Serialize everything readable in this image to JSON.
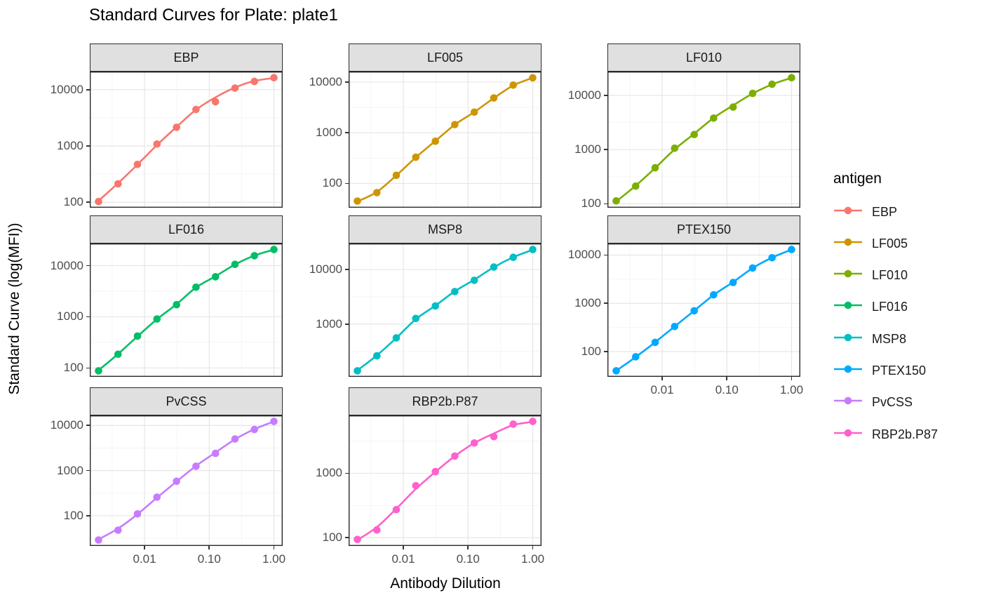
{
  "plot": {
    "title": "Standard Curves for Plate: plate1",
    "x_axis_title": "Antibody Dilution",
    "y_axis_title": "Standard Curve (log(MFI))",
    "legend_title": "antigen"
  },
  "style": {
    "background": "#FFFFFF",
    "strip_fill": "#E0E0E0",
    "strip_border": "#2A2A2A",
    "panel_border": "#2A2A2A",
    "grid_major": "#E6E6E6",
    "grid_minor": "#F3F3F3",
    "axis_text": "#4D4D4D",
    "tick_mark": "#333333"
  },
  "chart_data": {
    "type": "scatter",
    "subtype": "faceted standard curves: points + fitted smooth line, log10 x and y axes, free y scales",
    "title": "Standard Curves for Plate: plate1",
    "xlabel": "Antibody Dilution",
    "ylabel": "Standard Curve (log(MFI))",
    "legend_title": "antigen",
    "legend_position": "right",
    "grid": "on",
    "x_scale": "log10",
    "y_scale": "log10",
    "x": [
      0.00195,
      0.0039,
      0.0078,
      0.0156,
      0.0313,
      0.0625,
      0.125,
      0.25,
      0.5,
      1
    ],
    "x_ticks": [
      {
        "value": 0.01,
        "label": "0.01"
      },
      {
        "value": 0.1,
        "label": "0.10"
      },
      {
        "value": 1,
        "label": "1.00"
      }
    ],
    "y_tick_labels_seen": [
      "100",
      "1000",
      "10000"
    ],
    "facets": [
      {
        "name": "EBP",
        "color": "#F8766D",
        "mfi": [
          103,
          212,
          470,
          1080,
          2150,
          4450,
          6100,
          10700,
          14000,
          16300
        ],
        "fit": [
          106,
          218,
          468,
          1040,
          2180,
          4400,
          7300,
          10900,
          14300,
          16100
        ]
      },
      {
        "name": "LF005",
        "color": "#CD9600",
        "mfi": [
          45,
          66,
          145,
          330,
          680,
          1450,
          2550,
          4850,
          8700,
          12100
        ],
        "fit": [
          44,
          68,
          144,
          326,
          688,
          1440,
          2560,
          4830,
          8550,
          12150
        ]
      },
      {
        "name": "LF010",
        "color": "#7CAE00",
        "mfi": [
          113,
          212,
          462,
          1060,
          1900,
          3820,
          6100,
          10900,
          16100,
          21200
        ],
        "fit": [
          110,
          216,
          458,
          1010,
          1960,
          3860,
          6550,
          10800,
          16000,
          21100
        ]
      },
      {
        "name": "LF016",
        "color": "#00BE67",
        "mfi": [
          88,
          185,
          420,
          905,
          1720,
          3780,
          6050,
          10600,
          15600,
          20600
        ],
        "fit": [
          90,
          187,
          414,
          895,
          1760,
          3730,
          6200,
          10500,
          15700,
          20500
        ]
      },
      {
        "name": "MSP8",
        "color": "#00BFC4",
        "mfi": [
          140,
          263,
          560,
          1270,
          2150,
          3950,
          6350,
          11100,
          16700,
          23200
        ],
        "fit": [
          142,
          268,
          558,
          1230,
          2180,
          4000,
          6500,
          11000,
          16800,
          23000
        ]
      },
      {
        "name": "PTEX150",
        "color": "#00A9FF",
        "mfi": [
          40,
          78,
          155,
          330,
          700,
          1500,
          2700,
          5400,
          8800,
          13000
        ],
        "fit": [
          40,
          77,
          156,
          332,
          702,
          1490,
          2760,
          5360,
          8850,
          12950
        ]
      },
      {
        "name": "PvCSS",
        "color": "#C77CFF",
        "mfi": [
          29,
          48,
          110,
          258,
          580,
          1250,
          2400,
          5000,
          8100,
          12300
        ],
        "fit": [
          30,
          52,
          108,
          252,
          572,
          1265,
          2510,
          4920,
          8250,
          12250
        ]
      },
      {
        "name": "RBP2b.P87",
        "color": "#FF61CC",
        "mfi": [
          94,
          132,
          272,
          640,
          1060,
          1850,
          2950,
          3700,
          5800,
          6400
        ],
        "fit": [
          92,
          146,
          282,
          570,
          1050,
          1850,
          2950,
          4150,
          5600,
          6300
        ]
      }
    ]
  }
}
